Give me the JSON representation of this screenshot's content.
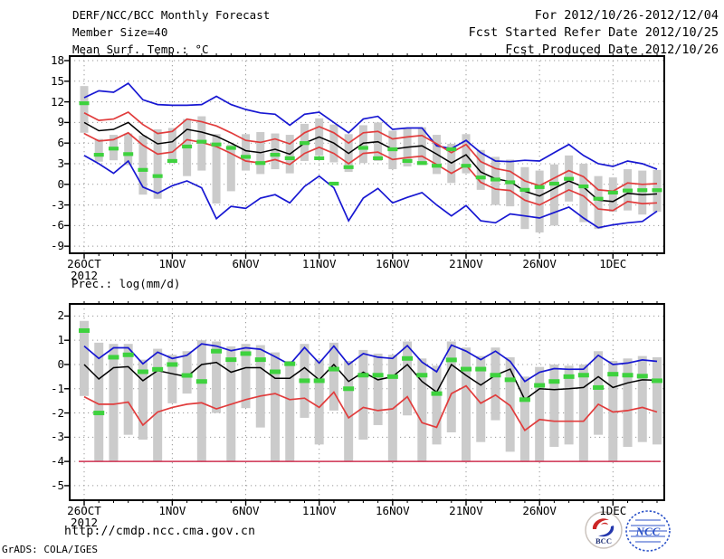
{
  "header": {
    "title": "DERF/NCC/BCC Monthly Forecast",
    "member_size": "Member Size=40",
    "for_range": "For 2012/10/26-2012/12/04",
    "refer_date": "Fcst Started Refer Date 2012/10/25",
    "produced_date": "Fcst Produced Date 2012/10/26"
  },
  "footer": {
    "url": "http://cmdp.ncc.cma.gov.cn",
    "credit": "GrADS: COLA/IGES"
  },
  "logos": {
    "bcc_label": "BCC",
    "ncc_label": "NCC"
  },
  "colors": {
    "blue": "#1717d2",
    "red": "#e13c3c",
    "black": "#000000",
    "green": "#3ed23e",
    "bar": "#cbcbcb",
    "grid": "#999999",
    "baseline": "#cf3050",
    "frame": "#000000"
  },
  "chart_data": [
    {
      "type": "line",
      "title": "Mean Surf. Temp.: °C",
      "x": [
        "10/26",
        "10/27",
        "10/28",
        "10/29",
        "10/30",
        "10/31",
        "11/01",
        "11/02",
        "11/03",
        "11/04",
        "11/05",
        "11/06",
        "11/07",
        "11/08",
        "11/09",
        "11/10",
        "11/11",
        "11/12",
        "11/13",
        "11/14",
        "11/15",
        "11/16",
        "11/17",
        "11/18",
        "11/19",
        "11/20",
        "11/21",
        "11/22",
        "11/23",
        "11/24",
        "11/25",
        "11/26",
        "11/27",
        "11/28",
        "11/29",
        "11/30",
        "12/01",
        "12/02",
        "12/03",
        "12/04"
      ],
      "x_ticks": [
        {
          "day": 0,
          "label": "26OCT",
          "sublabel": "2012"
        },
        {
          "day": 6,
          "label": "1NOV"
        },
        {
          "day": 11,
          "label": "6NOV"
        },
        {
          "day": 16,
          "label": "11NOV"
        },
        {
          "day": 21,
          "label": "16NOV"
        },
        {
          "day": 26,
          "label": "21NOV"
        },
        {
          "day": 31,
          "label": "26NOV"
        },
        {
          "day": 36,
          "label": "1DEC"
        }
      ],
      "yticks": [
        18,
        15,
        12,
        9,
        6,
        3,
        0,
        -3,
        -6,
        -9
      ],
      "ylim": [
        -10.03,
        18.66
      ],
      "grid": true,
      "legend": "none",
      "series": [
        {
          "name": "ensemble-max",
          "color_key": "blue",
          "values": [
            12.6,
            13.6,
            13.4,
            14.7,
            12.3,
            11.6,
            11.5,
            11.5,
            11.6,
            12.8,
            11.6,
            10.9,
            10.4,
            10.2,
            8.6,
            10.2,
            10.5,
            9.0,
            7.5,
            9.5,
            9.9,
            8.0,
            8.2,
            8.2,
            5.6,
            5.2,
            6.4,
            4.6,
            3.4,
            3.3,
            3.5,
            3.4,
            4.6,
            5.8,
            4.2,
            3.0,
            2.6,
            3.4,
            3.0,
            2.2
          ]
        },
        {
          "name": "upper-bound",
          "color_key": "red",
          "values": [
            10.4,
            9.3,
            9.5,
            10.5,
            8.7,
            7.4,
            7.7,
            9.5,
            9.1,
            8.5,
            7.5,
            6.4,
            6.1,
            6.6,
            5.9,
            7.5,
            8.4,
            7.5,
            6.0,
            7.5,
            7.7,
            6.6,
            6.9,
            7.1,
            5.9,
            4.6,
            5.8,
            3.3,
            2.3,
            1.9,
            0.5,
            -0.2,
            0.9,
            2.0,
            1.1,
            -0.8,
            -1.0,
            0.2,
            0.0,
            0.1
          ]
        },
        {
          "name": "ensemble-mean",
          "color_key": "black",
          "values": [
            9.0,
            7.8,
            8.0,
            9.0,
            7.2,
            5.9,
            6.2,
            8.0,
            7.6,
            7.0,
            6.0,
            4.9,
            4.6,
            5.1,
            4.4,
            6.0,
            6.9,
            6.0,
            4.5,
            6.0,
            6.2,
            5.1,
            5.4,
            5.6,
            4.4,
            3.1,
            4.3,
            1.8,
            0.8,
            0.4,
            -1.0,
            -1.7,
            -0.6,
            0.5,
            -0.4,
            -2.3,
            -2.5,
            -1.3,
            -1.5,
            -1.4
          ]
        },
        {
          "name": "lower-bound",
          "color_key": "red",
          "values": [
            7.4,
            6.3,
            6.5,
            7.5,
            5.7,
            4.4,
            4.7,
            6.5,
            6.1,
            5.5,
            4.5,
            3.4,
            3.1,
            3.6,
            2.9,
            4.5,
            5.4,
            4.5,
            3.0,
            4.5,
            4.7,
            3.6,
            3.9,
            4.1,
            2.9,
            1.6,
            2.8,
            0.3,
            -0.7,
            -0.9,
            -2.3,
            -3.0,
            -1.9,
            -0.8,
            -1.7,
            -3.6,
            -3.8,
            -2.5,
            -2.8,
            -2.7
          ]
        },
        {
          "name": "ensemble-min",
          "color_key": "blue",
          "values": [
            4.2,
            3.0,
            1.6,
            3.4,
            -0.4,
            -1.3,
            -0.2,
            0.5,
            -0.5,
            -5.0,
            -3.2,
            -3.5,
            -2.0,
            -1.5,
            -2.7,
            -0.3,
            1.2,
            -0.5,
            -5.3,
            -2.0,
            -0.6,
            -2.7,
            -1.9,
            -1.2,
            -3.0,
            -4.6,
            -3.1,
            -5.3,
            -5.6,
            -4.3,
            -4.6,
            -4.9,
            -4.1,
            -3.3,
            -4.9,
            -6.3,
            -5.9,
            -5.6,
            -5.4,
            -3.9
          ]
        }
      ],
      "obs": {
        "name": "observation-marks",
        "color_key": "green",
        "values": [
          11.8,
          4.3,
          5.2,
          4.4,
          2.1,
          1.2,
          3.4,
          5.5,
          6.2,
          5.8,
          5.3,
          4.0,
          3.1,
          4.3,
          3.8,
          6.0,
          3.8,
          0.1,
          2.5,
          5.3,
          3.8,
          5.1,
          3.4,
          3.1,
          2.7,
          5.1,
          2.7,
          1.0,
          0.7,
          0.3,
          -0.8,
          -0.4,
          0.1,
          0.8,
          -0.3,
          -2.1,
          -1.2,
          -0.9,
          -0.85,
          -0.85
        ]
      },
      "bars": {
        "name": "ensemble-spread",
        "top": [
          14.3,
          6.6,
          7.2,
          7.4,
          7.1,
          8.0,
          8.2,
          9.5,
          9.9,
          7.3,
          5.8,
          7.3,
          7.6,
          7.4,
          7.2,
          8.8,
          9.6,
          8.7,
          7.3,
          8.6,
          9.0,
          7.8,
          8.1,
          8.3,
          7.2,
          5.9,
          7.3,
          5.0,
          4.0,
          3.6,
          2.5,
          2.0,
          2.9,
          4.2,
          3.0,
          1.2,
          1.0,
          2.2,
          2.0,
          2.1
        ],
        "bottom": [
          7.5,
          3.3,
          3.5,
          2.8,
          -1.5,
          -2.1,
          3.1,
          1.2,
          2.0,
          -2.8,
          -1.0,
          2.0,
          1.5,
          2.2,
          1.6,
          3.4,
          4.2,
          3.2,
          1.8,
          3.1,
          3.4,
          2.2,
          2.6,
          2.8,
          1.5,
          0.2,
          1.6,
          -0.8,
          -3.0,
          -3.2,
          -6.5,
          -7.0,
          -6.0,
          -2.5,
          -5.5,
          -6.5,
          -4.0,
          -3.8,
          -4.4,
          -4.0
        ]
      }
    },
    {
      "type": "line",
      "title": "Prec.: log(mm/d)",
      "x": [
        "10/26",
        "10/27",
        "10/28",
        "10/29",
        "10/30",
        "10/31",
        "11/01",
        "11/02",
        "11/03",
        "11/04",
        "11/05",
        "11/06",
        "11/07",
        "11/08",
        "11/09",
        "11/10",
        "11/11",
        "11/12",
        "11/13",
        "11/14",
        "11/15",
        "11/16",
        "11/17",
        "11/18",
        "11/19",
        "11/20",
        "11/21",
        "11/22",
        "11/23",
        "11/24",
        "11/25",
        "11/26",
        "11/27",
        "11/28",
        "11/29",
        "11/30",
        "12/01",
        "12/02",
        "12/03",
        "12/04"
      ],
      "x_ticks": [
        {
          "day": 0,
          "label": "26OCT",
          "sublabel": "2012"
        },
        {
          "day": 6,
          "label": "1NOV"
        },
        {
          "day": 11,
          "label": "6NOV"
        },
        {
          "day": 16,
          "label": "11NOV"
        },
        {
          "day": 21,
          "label": "16NOV"
        },
        {
          "day": 26,
          "label": "21NOV"
        },
        {
          "day": 31,
          "label": "26NOV"
        },
        {
          "day": 36,
          "label": "1DEC"
        }
      ],
      "yticks": [
        2,
        1,
        0,
        -1,
        -2,
        -3,
        -4,
        -5
      ],
      "ylim": [
        -5.6,
        2.5
      ],
      "grid": true,
      "legend": "none",
      "baseline": -4,
      "series": [
        {
          "name": "ensemble-max",
          "color_key": "blue",
          "values": [
            0.76,
            0.25,
            0.69,
            0.69,
            0.03,
            0.51,
            0.25,
            0.38,
            0.85,
            0.76,
            0.57,
            0.69,
            0.63,
            0.32,
            0.0,
            0.7,
            0.06,
            0.76,
            0.0,
            0.45,
            0.3,
            0.25,
            0.78,
            0.1,
            -0.3,
            0.8,
            0.55,
            0.2,
            0.55,
            0.13,
            -0.7,
            -0.32,
            -0.17,
            -0.2,
            -0.19,
            0.38,
            0.0,
            0.06,
            0.19,
            0.13
          ]
        },
        {
          "name": "ensemble-mean",
          "color_key": "black",
          "values": [
            0.0,
            -0.6,
            -0.13,
            -0.09,
            -0.67,
            -0.25,
            -0.38,
            -0.5,
            0.0,
            0.09,
            -0.32,
            -0.13,
            -0.13,
            -0.57,
            -0.57,
            -0.13,
            -0.63,
            0.0,
            -0.7,
            -0.32,
            -0.63,
            -0.5,
            0.0,
            -0.7,
            -1.14,
            0.0,
            -0.45,
            -0.85,
            -0.44,
            -0.19,
            -1.45,
            -1.0,
            -1.04,
            -1.0,
            -0.95,
            -0.5,
            -0.95,
            -0.76,
            -0.63,
            -0.65
          ]
        },
        {
          "name": "ensemble-min",
          "color_key": "red",
          "values": [
            -1.33,
            -1.64,
            -1.64,
            -1.55,
            -2.5,
            -1.96,
            -1.77,
            -1.64,
            -1.58,
            -1.83,
            -1.64,
            -1.45,
            -1.3,
            -1.2,
            -1.45,
            -1.39,
            -1.77,
            -1.14,
            -2.2,
            -1.77,
            -1.9,
            -1.83,
            -1.33,
            -2.4,
            -2.59,
            -1.2,
            -0.88,
            -1.6,
            -1.26,
            -1.7,
            -2.72,
            -2.27,
            -2.34,
            -2.34,
            -2.34,
            -1.64,
            -1.96,
            -1.9,
            -1.77,
            -1.96
          ]
        }
      ],
      "obs": {
        "name": "observation-marks",
        "color_key": "green",
        "values": [
          1.4,
          -2.0,
          0.3,
          0.4,
          -0.3,
          -0.2,
          0.0,
          -0.45,
          -0.7,
          0.55,
          0.2,
          0.45,
          0.2,
          -0.3,
          0.03,
          -0.67,
          -0.67,
          -0.19,
          -1.0,
          -0.44,
          -0.44,
          -0.5,
          0.25,
          -0.44,
          -1.2,
          0.19,
          -0.19,
          -0.19,
          -0.44,
          -0.63,
          -1.45,
          -0.86,
          -0.7,
          -0.5,
          -0.44,
          -0.95,
          -0.4,
          -0.44,
          -0.48,
          -0.67
        ]
      },
      "bars": {
        "name": "ensemble-spread",
        "top": [
          1.8,
          0.9,
          0.85,
          0.85,
          0.2,
          0.65,
          0.4,
          0.55,
          1.0,
          0.95,
          0.75,
          0.85,
          0.8,
          0.5,
          0.15,
          0.85,
          0.2,
          0.9,
          0.15,
          0.6,
          0.45,
          0.4,
          0.95,
          0.25,
          -0.05,
          0.95,
          0.7,
          0.35,
          0.7,
          0.3,
          -0.5,
          -0.1,
          0.0,
          -0.05,
          0.0,
          0.55,
          0.15,
          0.25,
          0.35,
          0.3
        ],
        "bottom": [
          -1.3,
          -4.0,
          -4.0,
          -2.9,
          -3.1,
          -4.0,
          -1.6,
          -1.2,
          -4.0,
          -2.0,
          -4.0,
          -1.8,
          -2.6,
          -4.0,
          -4.0,
          -2.2,
          -3.3,
          -1.9,
          -4.0,
          -3.1,
          -2.5,
          -4.0,
          -2.1,
          -4.0,
          -3.3,
          -2.8,
          -4.0,
          -3.2,
          -2.3,
          -3.6,
          -4.0,
          -4.0,
          -3.4,
          -3.3,
          -4.0,
          -2.9,
          -4.0,
          -3.4,
          -3.2,
          -3.3
        ]
      }
    }
  ]
}
